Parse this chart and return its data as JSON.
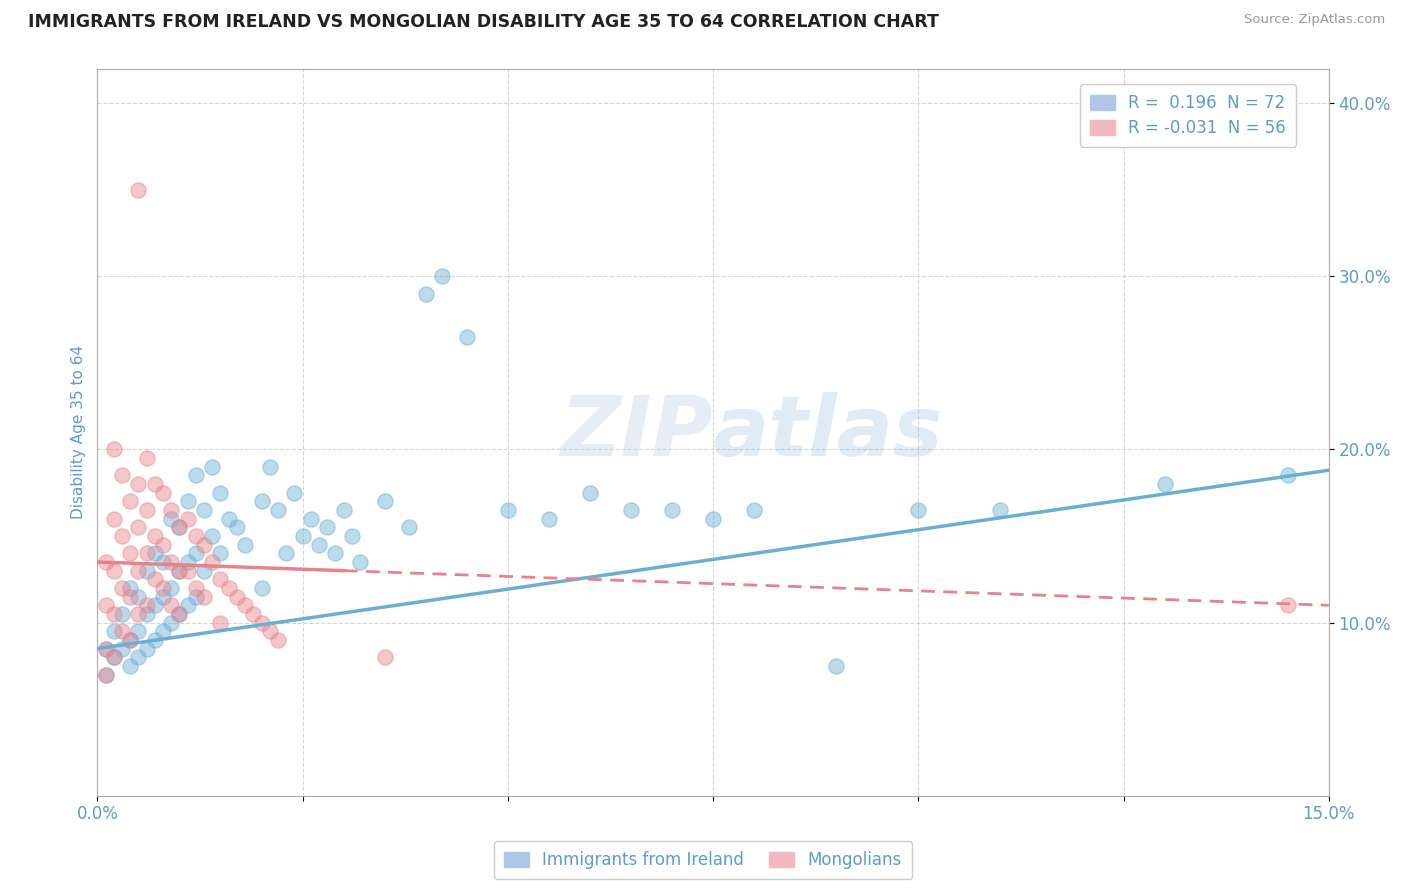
{
  "title": "IMMIGRANTS FROM IRELAND VS MONGOLIAN DISABILITY AGE 35 TO 64 CORRELATION CHART",
  "source": "Source: ZipAtlas.com",
  "ylabel": "Disability Age 35 to 64",
  "xlim": [
    0.0,
    15.0
  ],
  "ylim": [
    0.0,
    42.0
  ],
  "ireland_color": "#6aaed6",
  "mongolia_color": "#e8828a",
  "ireland_scatter": [
    [
      0.1,
      8.5
    ],
    [
      0.1,
      7.0
    ],
    [
      0.2,
      9.5
    ],
    [
      0.2,
      8.0
    ],
    [
      0.3,
      10.5
    ],
    [
      0.3,
      8.5
    ],
    [
      0.4,
      12.0
    ],
    [
      0.4,
      9.0
    ],
    [
      0.4,
      7.5
    ],
    [
      0.5,
      11.5
    ],
    [
      0.5,
      9.5
    ],
    [
      0.5,
      8.0
    ],
    [
      0.6,
      13.0
    ],
    [
      0.6,
      10.5
    ],
    [
      0.6,
      8.5
    ],
    [
      0.7,
      14.0
    ],
    [
      0.7,
      11.0
    ],
    [
      0.7,
      9.0
    ],
    [
      0.8,
      13.5
    ],
    [
      0.8,
      11.5
    ],
    [
      0.8,
      9.5
    ],
    [
      0.9,
      16.0
    ],
    [
      0.9,
      12.0
    ],
    [
      0.9,
      10.0
    ],
    [
      1.0,
      15.5
    ],
    [
      1.0,
      13.0
    ],
    [
      1.0,
      10.5
    ],
    [
      1.1,
      17.0
    ],
    [
      1.1,
      13.5
    ],
    [
      1.1,
      11.0
    ],
    [
      1.2,
      18.5
    ],
    [
      1.2,
      14.0
    ],
    [
      1.2,
      11.5
    ],
    [
      1.3,
      16.5
    ],
    [
      1.3,
      13.0
    ],
    [
      1.4,
      19.0
    ],
    [
      1.4,
      15.0
    ],
    [
      1.5,
      17.5
    ],
    [
      1.5,
      14.0
    ],
    [
      1.6,
      16.0
    ],
    [
      1.7,
      15.5
    ],
    [
      1.8,
      14.5
    ],
    [
      2.0,
      17.0
    ],
    [
      2.0,
      12.0
    ],
    [
      2.1,
      19.0
    ],
    [
      2.2,
      16.5
    ],
    [
      2.3,
      14.0
    ],
    [
      2.4,
      17.5
    ],
    [
      2.5,
      15.0
    ],
    [
      2.6,
      16.0
    ],
    [
      2.7,
      14.5
    ],
    [
      2.8,
      15.5
    ],
    [
      2.9,
      14.0
    ],
    [
      3.0,
      16.5
    ],
    [
      3.1,
      15.0
    ],
    [
      3.2,
      13.5
    ],
    [
      3.5,
      17.0
    ],
    [
      3.8,
      15.5
    ],
    [
      4.0,
      29.0
    ],
    [
      4.2,
      30.0
    ],
    [
      4.5,
      26.5
    ],
    [
      5.0,
      16.5
    ],
    [
      5.5,
      16.0
    ],
    [
      6.0,
      17.5
    ],
    [
      6.5,
      16.5
    ],
    [
      7.0,
      16.5
    ],
    [
      7.5,
      16.0
    ],
    [
      8.0,
      16.5
    ],
    [
      9.0,
      7.5
    ],
    [
      10.0,
      16.5
    ],
    [
      11.0,
      16.5
    ],
    [
      13.0,
      18.0
    ],
    [
      14.5,
      18.5
    ]
  ],
  "mongolia_scatter": [
    [
      0.1,
      13.5
    ],
    [
      0.1,
      11.0
    ],
    [
      0.1,
      8.5
    ],
    [
      0.1,
      7.0
    ],
    [
      0.2,
      20.0
    ],
    [
      0.2,
      16.0
    ],
    [
      0.2,
      13.0
    ],
    [
      0.2,
      10.5
    ],
    [
      0.2,
      8.0
    ],
    [
      0.3,
      18.5
    ],
    [
      0.3,
      15.0
    ],
    [
      0.3,
      12.0
    ],
    [
      0.3,
      9.5
    ],
    [
      0.4,
      17.0
    ],
    [
      0.4,
      14.0
    ],
    [
      0.4,
      11.5
    ],
    [
      0.4,
      9.0
    ],
    [
      0.5,
      18.0
    ],
    [
      0.5,
      15.5
    ],
    [
      0.5,
      13.0
    ],
    [
      0.5,
      10.5
    ],
    [
      0.5,
      35.0
    ],
    [
      0.6,
      19.5
    ],
    [
      0.6,
      16.5
    ],
    [
      0.6,
      14.0
    ],
    [
      0.6,
      11.0
    ],
    [
      0.7,
      18.0
    ],
    [
      0.7,
      15.0
    ],
    [
      0.7,
      12.5
    ],
    [
      0.8,
      17.5
    ],
    [
      0.8,
      14.5
    ],
    [
      0.8,
      12.0
    ],
    [
      0.9,
      16.5
    ],
    [
      0.9,
      13.5
    ],
    [
      0.9,
      11.0
    ],
    [
      1.0,
      15.5
    ],
    [
      1.0,
      13.0
    ],
    [
      1.0,
      10.5
    ],
    [
      1.1,
      16.0
    ],
    [
      1.1,
      13.0
    ],
    [
      1.2,
      15.0
    ],
    [
      1.2,
      12.0
    ],
    [
      1.3,
      14.5
    ],
    [
      1.3,
      11.5
    ],
    [
      1.4,
      13.5
    ],
    [
      1.5,
      12.5
    ],
    [
      1.5,
      10.0
    ],
    [
      1.6,
      12.0
    ],
    [
      1.7,
      11.5
    ],
    [
      1.8,
      11.0
    ],
    [
      1.9,
      10.5
    ],
    [
      2.0,
      10.0
    ],
    [
      2.1,
      9.5
    ],
    [
      2.2,
      9.0
    ],
    [
      3.5,
      8.0
    ],
    [
      14.5,
      11.0
    ]
  ],
  "ireland_line": {
    "x0": 0.0,
    "y0": 8.5,
    "x1": 15.0,
    "y1": 18.8
  },
  "mongolia_line": {
    "x0": 0.0,
    "y0": 13.5,
    "x1": 15.0,
    "y1": 11.0
  },
  "mongolia_dash_start": 3.0,
  "background_color": "#ffffff",
  "grid_color": "#cccccc",
  "title_color": "#222222",
  "axis_label_color": "#5b9bd5",
  "tick_color": "#5b9bd5"
}
